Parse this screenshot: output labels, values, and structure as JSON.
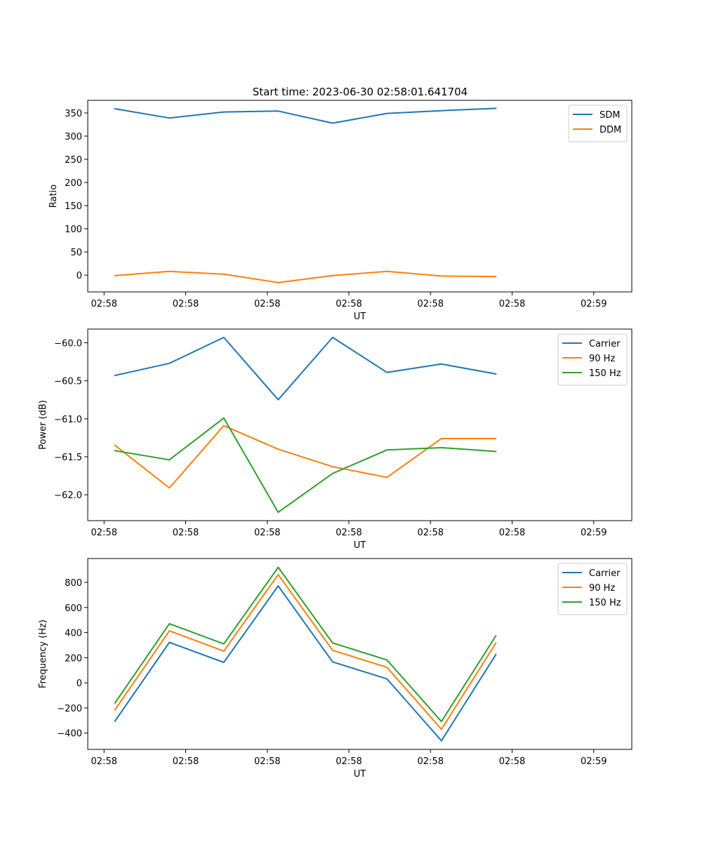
{
  "figure": {
    "title": "Start time: 2023-06-30 02:58:01.641704"
  },
  "chart_data": [
    {
      "type": "line",
      "title": "Start time: 2023-06-30 02:58:01.641704",
      "xlabel": "UT",
      "ylabel": "Ratio",
      "xticks": [
        "02:58",
        "02:58",
        "02:58",
        "02:58",
        "02:58",
        "02:58",
        "02:59"
      ],
      "xlim": [
        -0.5,
        9.5
      ],
      "x": [
        0,
        1,
        2,
        3,
        4,
        5,
        6,
        7
      ],
      "ylim": [
        -36.2,
        377.2
      ],
      "yticks": [
        0,
        50,
        100,
        150,
        200,
        250,
        300,
        350
      ],
      "legend_position": "top-right",
      "series": [
        {
          "name": "SDM",
          "color": "#1f77b4",
          "values": [
            359,
            339,
            352,
            354,
            328,
            349,
            355,
            360
          ]
        },
        {
          "name": "DDM",
          "color": "#ff7f0e",
          "values": [
            -1,
            8,
            2,
            -16,
            -1,
            8,
            -2,
            -3
          ]
        }
      ]
    },
    {
      "type": "line",
      "xlabel": "UT",
      "ylabel": "Power (dB)",
      "xticks": [
        "02:58",
        "02:58",
        "02:58",
        "02:58",
        "02:58",
        "02:58",
        "02:59"
      ],
      "xlim": [
        -0.5,
        9.5
      ],
      "x": [
        0,
        1,
        2,
        3,
        4,
        5,
        6,
        7
      ],
      "ylim": [
        -62.34,
        -59.82
      ],
      "yticks": [
        -62.0,
        -61.5,
        -61.0,
        -60.5,
        -60.0
      ],
      "ytick_labels": [
        "−62.0",
        "−61.5",
        "−61.0",
        "−60.5",
        "−60.0"
      ],
      "legend_position": "top-right",
      "series": [
        {
          "name": "Carrier",
          "color": "#1f77b4",
          "values": [
            -60.43,
            -60.27,
            -59.93,
            -60.75,
            -59.93,
            -60.39,
            -60.28,
            -60.41
          ]
        },
        {
          "name": "90 Hz",
          "color": "#ff7f0e",
          "values": [
            -61.35,
            -61.91,
            -61.09,
            -61.4,
            -61.63,
            -61.77,
            -61.26,
            -61.26
          ]
        },
        {
          "name": "150 Hz",
          "color": "#2ca02c",
          "values": [
            -61.42,
            -61.54,
            -60.99,
            -62.23,
            -61.72,
            -61.41,
            -61.38,
            -61.43
          ]
        }
      ]
    },
    {
      "type": "line",
      "xlabel": "UT",
      "ylabel": "Frequency (Hz)",
      "xticks": [
        "02:58",
        "02:58",
        "02:58",
        "02:58",
        "02:58",
        "02:58",
        "02:59"
      ],
      "xlim": [
        -0.5,
        9.5
      ],
      "x": [
        0,
        1,
        2,
        3,
        4,
        5,
        6,
        7
      ],
      "ylim": [
        -530,
        990
      ],
      "yticks": [
        -400,
        -200,
        0,
        200,
        400,
        600,
        800
      ],
      "ytick_labels": [
        "−400",
        "−200",
        "0",
        "200",
        "400",
        "600",
        "800"
      ],
      "legend_position": "top-right",
      "series": [
        {
          "name": "Carrier",
          "color": "#1f77b4",
          "values": [
            -305,
            322,
            163,
            772,
            167,
            31,
            -461,
            225
          ]
        },
        {
          "name": "90 Hz",
          "color": "#ff7f0e",
          "values": [
            -215,
            414,
            253,
            862,
            259,
            123,
            -370,
            316
          ]
        },
        {
          "name": "150 Hz",
          "color": "#2ca02c",
          "values": [
            -160,
            471,
            310,
            920,
            318,
            182,
            -308,
            374
          ]
        }
      ]
    }
  ]
}
